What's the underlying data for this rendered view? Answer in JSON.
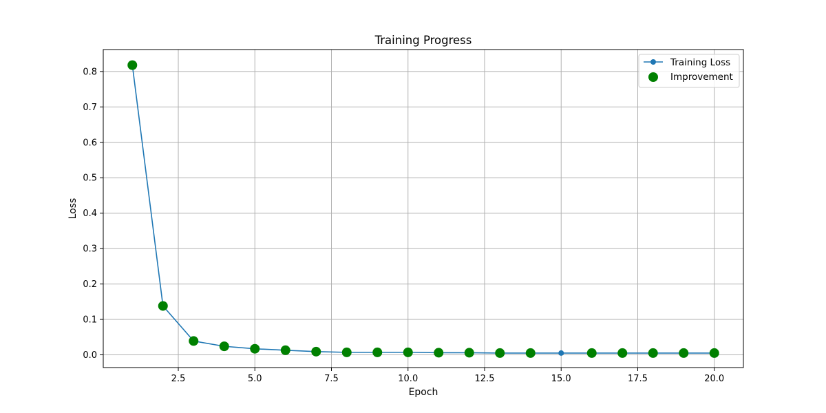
{
  "chart_data": {
    "type": "line",
    "title": "Training Progress",
    "xlabel": "Epoch",
    "ylabel": "Loss",
    "xlim": [
      0.05,
      20.95
    ],
    "ylim": [
      -0.036,
      0.862
    ],
    "xticks": [
      2.5,
      5.0,
      7.5,
      10.0,
      12.5,
      15.0,
      17.5,
      20.0
    ],
    "xtick_labels": [
      "2.5",
      "5.0",
      "7.5",
      "10.0",
      "12.5",
      "15.0",
      "17.5",
      "20.0"
    ],
    "yticks": [
      0.0,
      0.1,
      0.2,
      0.3,
      0.4,
      0.5,
      0.6,
      0.7,
      0.8
    ],
    "ytick_labels": [
      "0.0",
      "0.1",
      "0.2",
      "0.3",
      "0.4",
      "0.5",
      "0.6",
      "0.7",
      "0.8"
    ],
    "grid": true,
    "legend_position": "top-right",
    "series": [
      {
        "name": "Training Loss",
        "kind": "line-with-markers",
        "color": "#1f77b4",
        "x": [
          1,
          2,
          3,
          4,
          5,
          6,
          7,
          8,
          9,
          10,
          11,
          12,
          13,
          14,
          15,
          16,
          17,
          18,
          19,
          20
        ],
        "y": [
          0.818,
          0.138,
          0.039,
          0.024,
          0.017,
          0.013,
          0.009,
          0.007,
          0.007,
          0.007,
          0.006,
          0.006,
          0.005,
          0.005,
          0.005,
          0.005,
          0.005,
          0.005,
          0.005,
          0.005
        ]
      },
      {
        "name": "Improvement",
        "kind": "scatter",
        "color": "#008000",
        "x": [
          1,
          2,
          3,
          4,
          5,
          6,
          7,
          8,
          9,
          10,
          11,
          12,
          13,
          14,
          16,
          17,
          18,
          19,
          20
        ],
        "y": [
          0.818,
          0.138,
          0.039,
          0.024,
          0.017,
          0.013,
          0.009,
          0.007,
          0.007,
          0.007,
          0.006,
          0.006,
          0.005,
          0.005,
          0.005,
          0.005,
          0.005,
          0.005,
          0.005
        ]
      }
    ]
  }
}
